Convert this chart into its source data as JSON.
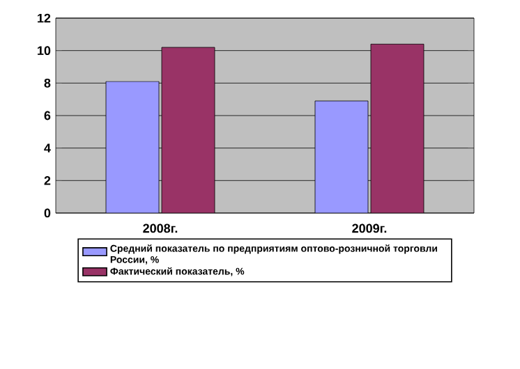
{
  "chart_data": {
    "type": "bar",
    "categories": [
      "2008г.",
      "2009г."
    ],
    "series": [
      {
        "name": "Средний показатель по предприятиям оптово-розничной торговли России, %",
        "color": "#9999ff",
        "values": [
          8.1,
          6.9
        ]
      },
      {
        "name": "Фактический показатель, %",
        "color": "#993366",
        "values": [
          10.2,
          10.4
        ]
      }
    ],
    "ylim": [
      0,
      12
    ],
    "yticks": [
      0,
      2,
      4,
      6,
      8,
      10,
      12
    ],
    "grid": "y",
    "legend": "bottom"
  }
}
